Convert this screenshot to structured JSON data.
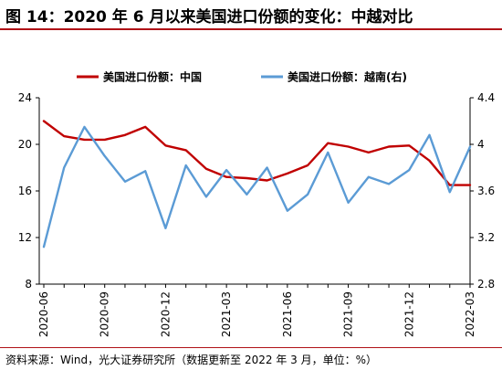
{
  "figure": {
    "title": "图 14：2020 年 6 月以来美国进口份额的变化：中越对比",
    "source": "资料来源：Wind，光大证券研究所（数据更新至 2022 年 3 月，单位：%）"
  },
  "chart_data": {
    "type": "line",
    "title": "",
    "legend_position": "top",
    "grid": false,
    "x": [
      "2020-06",
      "2020-07",
      "2020-08",
      "2020-09",
      "2020-10",
      "2020-11",
      "2020-12",
      "2021-01",
      "2021-02",
      "2021-03",
      "2021-04",
      "2021-05",
      "2021-06",
      "2021-07",
      "2021-08",
      "2021-09",
      "2021-10",
      "2021-11",
      "2021-12",
      "2022-01",
      "2022-02",
      "2022-03"
    ],
    "x_tick_labels": [
      "2020-06",
      "2020-09",
      "2020-12",
      "2021-03",
      "2021-06",
      "2021-09",
      "2021-12",
      "2022-03"
    ],
    "y_left": {
      "min": 8,
      "max": 24,
      "ticks": [
        "8",
        "12",
        "16",
        "20",
        "24"
      ]
    },
    "y_right": {
      "min": 2.8,
      "max": 4.4,
      "ticks": [
        "2.8",
        "3.2",
        "3.6",
        "4",
        "4.4"
      ]
    },
    "series": [
      {
        "name": "美国进口份额：中国",
        "axis": "left",
        "color": "#c00000",
        "values": [
          22.0,
          20.7,
          20.4,
          20.4,
          20.8,
          21.5,
          19.9,
          19.5,
          17.9,
          17.2,
          17.1,
          16.9,
          17.5,
          18.2,
          20.1,
          19.8,
          19.3,
          19.8,
          19.9,
          18.6,
          16.5,
          16.5
        ]
      },
      {
        "name": "美国进口份额：越南(右)",
        "axis": "right",
        "color": "#5b9bd5",
        "values": [
          3.12,
          3.8,
          4.15,
          3.9,
          3.68,
          3.77,
          3.28,
          3.82,
          3.55,
          3.78,
          3.57,
          3.8,
          3.43,
          3.57,
          3.93,
          3.5,
          3.72,
          3.66,
          3.78,
          4.08,
          3.59,
          3.98
        ]
      }
    ]
  }
}
